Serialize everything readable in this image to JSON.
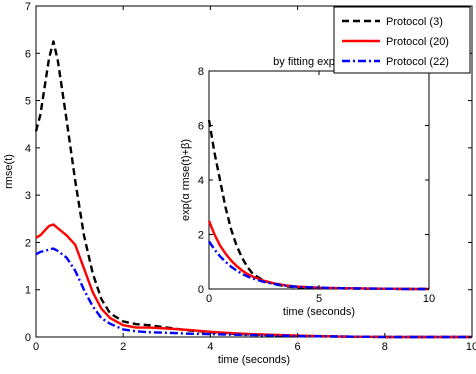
{
  "chart_data": [
    {
      "type": "line",
      "title": "",
      "xlabel": "time  (seconds)",
      "ylabel": "rmse(t)",
      "xlim": [
        0,
        10
      ],
      "ylim": [
        0,
        7
      ],
      "xticks": [
        0,
        2,
        4,
        6,
        8,
        10
      ],
      "yticks": [
        0,
        1,
        2,
        3,
        4,
        5,
        6,
        7
      ],
      "grid": false,
      "legend_position": "top-right",
      "series": [
        {
          "name": "Protocol (3)",
          "color": "#000000",
          "style": "dashed",
          "x": [
            0,
            0.1,
            0.2,
            0.3,
            0.4,
            0.5,
            0.7,
            0.9,
            1.1,
            1.3,
            1.5,
            1.7,
            2.0,
            2.3,
            2.6,
            3.0,
            3.5,
            4.0,
            4.5,
            5.0,
            6.0,
            7.0,
            8.0,
            9.0,
            10.0
          ],
          "y": [
            4.35,
            4.7,
            5.3,
            5.9,
            6.25,
            5.85,
            4.6,
            3.3,
            2.15,
            1.35,
            0.8,
            0.5,
            0.33,
            0.27,
            0.25,
            0.2,
            0.14,
            0.1,
            0.07,
            0.05,
            0.02,
            0.01,
            0.0,
            0.0,
            0.0
          ]
        },
        {
          "name": "Protocol (20)",
          "color": "#ff0000",
          "style": "solid",
          "x": [
            0,
            0.1,
            0.2,
            0.3,
            0.4,
            0.5,
            0.7,
            0.9,
            1.1,
            1.3,
            1.5,
            1.7,
            2.0,
            2.3,
            2.6,
            3.0,
            3.5,
            4.0,
            4.5,
            5.0,
            6.0,
            7.0,
            8.0,
            9.0,
            10.0
          ],
          "y": [
            2.1,
            2.15,
            2.25,
            2.35,
            2.38,
            2.3,
            2.15,
            1.95,
            1.45,
            0.95,
            0.6,
            0.4,
            0.25,
            0.2,
            0.2,
            0.18,
            0.15,
            0.11,
            0.08,
            0.06,
            0.03,
            0.01,
            0.0,
            0.0,
            0.0
          ]
        },
        {
          "name": "Protocol (22)",
          "color": "#0000ff",
          "style": "dash-dot",
          "x": [
            0,
            0.1,
            0.2,
            0.3,
            0.4,
            0.5,
            0.7,
            0.9,
            1.1,
            1.3,
            1.5,
            1.7,
            2.0,
            2.3,
            2.6,
            3.0,
            3.5,
            4.0,
            4.5,
            5.0,
            6.0,
            7.0,
            8.0,
            9.0,
            10.0
          ],
          "y": [
            1.75,
            1.8,
            1.82,
            1.85,
            1.87,
            1.82,
            1.68,
            1.4,
            1.0,
            0.65,
            0.4,
            0.28,
            0.16,
            0.12,
            0.1,
            0.09,
            0.07,
            0.06,
            0.05,
            0.04,
            0.02,
            0.01,
            0.0,
            0.0,
            0.0
          ]
        }
      ]
    },
    {
      "type": "line",
      "title": "by fitting exp curve",
      "xlabel": "time  (seconds)",
      "ylabel": "exp(α rmse(t)+β)",
      "xlim": [
        0,
        10
      ],
      "ylim": [
        0,
        8
      ],
      "xticks": [
        0,
        5,
        10
      ],
      "yticks": [
        0,
        2,
        4,
        6,
        8
      ],
      "grid": false,
      "series": [
        {
          "color": "#000000",
          "style": "dashed",
          "x": [
            0,
            0.25,
            0.5,
            0.75,
            1.0,
            1.25,
            1.5,
            1.75,
            2.0,
            2.5,
            3.0,
            3.5,
            4.0,
            5.0,
            6.0,
            7.0,
            8.0,
            9.0,
            10.0
          ],
          "y": [
            6.2,
            5.0,
            4.0,
            3.0,
            2.2,
            1.6,
            1.15,
            0.8,
            0.55,
            0.3,
            0.17,
            0.1,
            0.06,
            0.03,
            0.02,
            0.01,
            0.01,
            0.0,
            0.0
          ]
        },
        {
          "color": "#ff0000",
          "style": "solid",
          "x": [
            0,
            0.25,
            0.5,
            0.75,
            1.0,
            1.25,
            1.5,
            1.75,
            2.0,
            2.5,
            3.0,
            3.5,
            4.0,
            5.0,
            6.0,
            7.0,
            8.0,
            9.0,
            10.0
          ],
          "y": [
            2.5,
            2.0,
            1.6,
            1.3,
            1.05,
            0.85,
            0.68,
            0.55,
            0.45,
            0.3,
            0.2,
            0.13,
            0.09,
            0.05,
            0.03,
            0.02,
            0.01,
            0.0,
            0.0
          ]
        },
        {
          "color": "#0000ff",
          "style": "dash-dot",
          "x": [
            0,
            0.25,
            0.5,
            0.75,
            1.0,
            1.25,
            1.5,
            1.75,
            2.0,
            2.5,
            3.0,
            3.5,
            4.0,
            5.0,
            6.0,
            7.0,
            8.0,
            9.0,
            10.0
          ],
          "y": [
            1.75,
            1.45,
            1.2,
            1.0,
            0.82,
            0.68,
            0.56,
            0.46,
            0.38,
            0.26,
            0.18,
            0.12,
            0.08,
            0.05,
            0.03,
            0.02,
            0.01,
            0.0,
            0.0
          ]
        }
      ]
    }
  ]
}
